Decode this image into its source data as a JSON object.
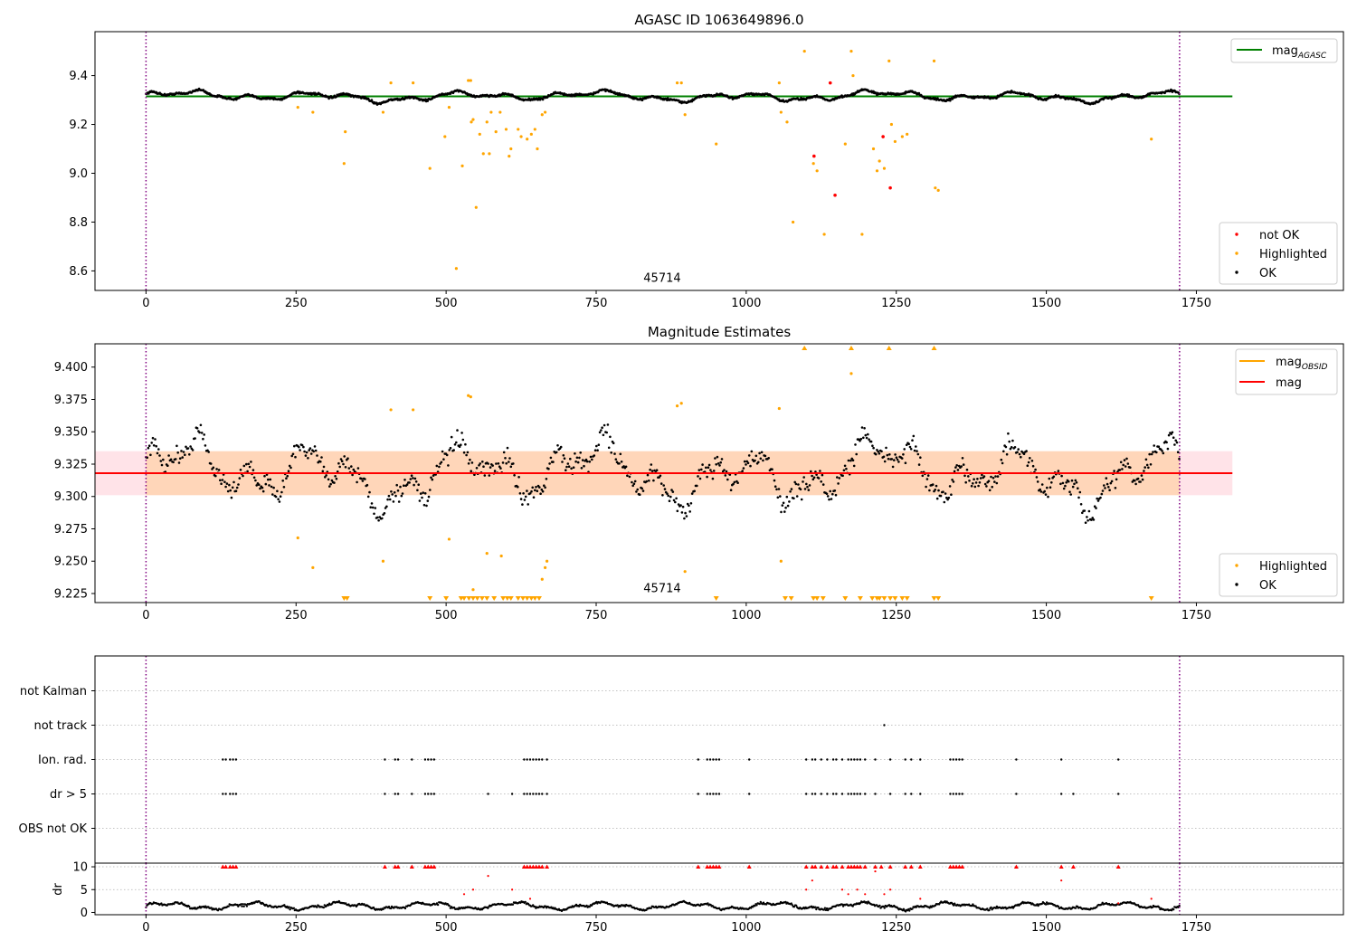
{
  "colors": {
    "ok": "#000000",
    "highlighted": "#ffa500",
    "not_ok": "#ff0000",
    "agasc": "#008000",
    "mag": "#ff0000",
    "band": "#ffc0cb",
    "vline": "#800080",
    "grid": "#b0b0b0"
  },
  "chart_data": [
    {
      "type": "scatter",
      "title": "AGASC ID 1063649896.0",
      "xlim": [
        -85,
        1995
      ],
      "ylim": [
        8.52,
        9.58
      ],
      "xticks": [
        0,
        250,
        500,
        750,
        1000,
        1250,
        1500,
        1750
      ],
      "yticks": [
        8.6,
        8.8,
        9.0,
        9.2,
        9.4
      ],
      "ytick_labels": [
        "8.6",
        "8.8",
        "9.0",
        "9.2",
        "9.4"
      ],
      "obsid_label": {
        "text": "45714",
        "x": 860,
        "y": 8.555
      },
      "vlines": [
        0,
        1722
      ],
      "mag_agasc": {
        "value": 9.315,
        "x": [
          0,
          1810
        ]
      },
      "legend_line": {
        "label": "mag",
        "sub": "AGASC"
      },
      "legend_points": [
        {
          "label": "not OK",
          "color": "not_ok"
        },
        {
          "label": "Highlighted",
          "color": "highlighted"
        },
        {
          "label": "OK",
          "color": "ok"
        }
      ],
      "ok_curve": {
        "x_range": [
          0,
          1722
        ],
        "base": 9.315,
        "noise": 0.01
      },
      "highlighted": [
        [
          253,
          9.27
        ],
        [
          278,
          9.25
        ],
        [
          330,
          9.04
        ],
        [
          332,
          9.17
        ],
        [
          395,
          9.25
        ],
        [
          408,
          9.37
        ],
        [
          445,
          9.37
        ],
        [
          473,
          9.02
        ],
        [
          498,
          9.15
        ],
        [
          505,
          9.27
        ],
        [
          517,
          8.61
        ],
        [
          527,
          9.03
        ],
        [
          537,
          9.38
        ],
        [
          541,
          9.38
        ],
        [
          542,
          9.21
        ],
        [
          545,
          9.22
        ],
        [
          550,
          8.86
        ],
        [
          556,
          9.16
        ],
        [
          562,
          9.08
        ],
        [
          568,
          9.21
        ],
        [
          572,
          9.08
        ],
        [
          575,
          9.25
        ],
        [
          583,
          9.17
        ],
        [
          590,
          9.25
        ],
        [
          600,
          9.18
        ],
        [
          605,
          9.07
        ],
        [
          608,
          9.1
        ],
        [
          620,
          9.18
        ],
        [
          625,
          9.15
        ],
        [
          635,
          9.14
        ],
        [
          642,
          9.16
        ],
        [
          648,
          9.18
        ],
        [
          652,
          9.1
        ],
        [
          660,
          9.24
        ],
        [
          665,
          9.25
        ],
        [
          885,
          9.37
        ],
        [
          892,
          9.37
        ],
        [
          898,
          9.24
        ],
        [
          950,
          9.12
        ],
        [
          1055,
          9.37
        ],
        [
          1058,
          9.25
        ],
        [
          1068,
          9.21
        ],
        [
          1078,
          8.8
        ],
        [
          1097,
          9.5
        ],
        [
          1112,
          9.04
        ],
        [
          1118,
          9.01
        ],
        [
          1130,
          8.75
        ],
        [
          1165,
          9.12
        ],
        [
          1175,
          9.5
        ],
        [
          1178,
          9.4
        ],
        [
          1193,
          8.75
        ],
        [
          1212,
          9.1
        ],
        [
          1218,
          9.01
        ],
        [
          1222,
          9.05
        ],
        [
          1230,
          9.02
        ],
        [
          1238,
          9.46
        ],
        [
          1242,
          9.2
        ],
        [
          1248,
          9.13
        ],
        [
          1260,
          9.15
        ],
        [
          1268,
          9.16
        ],
        [
          1313,
          9.46
        ],
        [
          1315,
          8.94
        ],
        [
          1320,
          8.93
        ],
        [
          1675,
          9.14
        ]
      ],
      "not_ok": [
        [
          1113,
          9.07
        ],
        [
          1140,
          9.37
        ],
        [
          1148,
          8.91
        ],
        [
          1228,
          9.15
        ],
        [
          1240,
          8.94
        ]
      ]
    },
    {
      "type": "scatter",
      "title": "Magnitude Estimates",
      "xlim": [
        -85,
        1995
      ],
      "ylim": [
        9.218,
        9.418
      ],
      "xticks": [
        0,
        250,
        500,
        750,
        1000,
        1250,
        1500,
        1750
      ],
      "yticks": [
        9.225,
        9.25,
        9.275,
        9.3,
        9.325,
        9.35,
        9.375,
        9.4
      ],
      "ytick_labels": [
        "9.225",
        "9.250",
        "9.275",
        "9.300",
        "9.325",
        "9.350",
        "9.375",
        "9.400"
      ],
      "obsid_label": {
        "text": "45714",
        "x": 860,
        "y": 9.226
      },
      "vlines": [
        0,
        1722
      ],
      "mag": {
        "value": 9.318,
        "x": [
          -85,
          1810
        ]
      },
      "mag_band": {
        "low": 9.301,
        "high": 9.335,
        "x": [
          -85,
          1810
        ]
      },
      "mag_obsid_band": {
        "low": 9.301,
        "high": 9.335,
        "x": [
          0,
          1722
        ]
      },
      "legend_lines": [
        {
          "label": "mag",
          "sub": "OBSID",
          "color": "highlighted"
        },
        {
          "label": "mag",
          "sub": "",
          "color": "mag"
        }
      ],
      "legend_points": [
        {
          "label": "Highlighted",
          "color": "highlighted"
        },
        {
          "label": "OK",
          "color": "ok"
        }
      ],
      "ok_curve": {
        "x_range": [
          0,
          1722
        ],
        "base": 9.318,
        "noise": 0.012
      },
      "highlighted": [
        [
          253,
          9.268
        ],
        [
          278,
          9.245
        ],
        [
          395,
          9.25
        ],
        [
          408,
          9.367
        ],
        [
          445,
          9.367
        ],
        [
          505,
          9.267
        ],
        [
          537,
          9.378
        ],
        [
          541,
          9.377
        ],
        [
          545,
          9.228
        ],
        [
          568,
          9.256
        ],
        [
          592,
          9.254
        ],
        [
          660,
          9.236
        ],
        [
          665,
          9.245
        ],
        [
          668,
          9.25
        ],
        [
          885,
          9.37
        ],
        [
          892,
          9.372
        ],
        [
          898,
          9.242
        ],
        [
          1055,
          9.368
        ],
        [
          1058,
          9.25
        ],
        [
          1175,
          9.395
        ]
      ],
      "markers_top": [
        1097,
        1175,
        1238,
        1313
      ],
      "markers_bottom": [
        330,
        335,
        473,
        500,
        525,
        530,
        538,
        545,
        552,
        560,
        568,
        580,
        595,
        602,
        608,
        620,
        628,
        635,
        642,
        648,
        655,
        950,
        1065,
        1075,
        1112,
        1118,
        1128,
        1165,
        1190,
        1210,
        1218,
        1222,
        1230,
        1240,
        1248,
        1260,
        1268,
        1313,
        1320,
        1675
      ]
    },
    {
      "type": "scatter",
      "title": "",
      "xlim": [
        -85,
        1995
      ],
      "xticks": [
        0,
        250,
        500,
        750,
        1000,
        1250,
        1500,
        1750
      ],
      "vlines": [
        0,
        1722
      ],
      "flags": [
        {
          "label": "not Kalman",
          "x": []
        },
        {
          "label": "not track",
          "x": [
            1230
          ]
        },
        {
          "label": "Ion. rad.",
          "x": [
            128,
            133,
            140,
            145,
            150,
            398,
            415,
            420,
            443,
            465,
            470,
            475,
            480,
            630,
            635,
            640,
            645,
            650,
            655,
            660,
            668,
            920,
            935,
            940,
            945,
            950,
            955,
            1005,
            1100,
            1110,
            1115,
            1125,
            1135,
            1145,
            1150,
            1160,
            1170,
            1175,
            1180,
            1185,
            1190,
            1198,
            1215,
            1240,
            1265,
            1275,
            1290,
            1340,
            1345,
            1350,
            1355,
            1360,
            1450,
            1525,
            1620
          ]
        },
        {
          "label": "dr > 5",
          "x": [
            128,
            133,
            140,
            145,
            150,
            398,
            415,
            420,
            443,
            465,
            470,
            475,
            480,
            570,
            610,
            630,
            635,
            640,
            645,
            650,
            655,
            660,
            668,
            920,
            935,
            940,
            945,
            950,
            955,
            1005,
            1100,
            1110,
            1115,
            1125,
            1135,
            1145,
            1150,
            1160,
            1170,
            1175,
            1180,
            1185,
            1190,
            1198,
            1215,
            1240,
            1265,
            1275,
            1290,
            1340,
            1345,
            1350,
            1355,
            1360,
            1450,
            1525,
            1545,
            1620
          ]
        },
        {
          "label": "OBS not OK",
          "x": []
        }
      ],
      "dr": {
        "ylabel": "dr",
        "ylim": [
          -0.5,
          10.8
        ],
        "yticks": [
          0,
          5,
          10
        ],
        "ytick_labels": [
          "0",
          "5",
          "10"
        ],
        "x_range": [
          0,
          1722
        ],
        "outliers": [
          [
            530,
            4
          ],
          [
            545,
            5
          ],
          [
            570,
            8
          ],
          [
            610,
            5
          ],
          [
            640,
            3
          ],
          [
            1100,
            5
          ],
          [
            1110,
            7
          ],
          [
            1160,
            5
          ],
          [
            1170,
            4
          ],
          [
            1185,
            5
          ],
          [
            1198,
            4
          ],
          [
            1215,
            9
          ],
          [
            1230,
            4
          ],
          [
            1240,
            5
          ],
          [
            1290,
            3
          ],
          [
            1525,
            7
          ],
          [
            1620,
            2
          ],
          [
            1675,
            3
          ]
        ],
        "capped": [
          128,
          133,
          140,
          145,
          150,
          398,
          415,
          420,
          443,
          465,
          470,
          475,
          480,
          630,
          635,
          640,
          645,
          650,
          655,
          660,
          668,
          920,
          935,
          940,
          945,
          950,
          955,
          1005,
          1100,
          1110,
          1115,
          1125,
          1135,
          1145,
          1150,
          1160,
          1170,
          1175,
          1180,
          1185,
          1190,
          1198,
          1215,
          1225,
          1240,
          1265,
          1275,
          1290,
          1340,
          1345,
          1350,
          1355,
          1360,
          1450,
          1525,
          1545,
          1620
        ]
      }
    }
  ]
}
